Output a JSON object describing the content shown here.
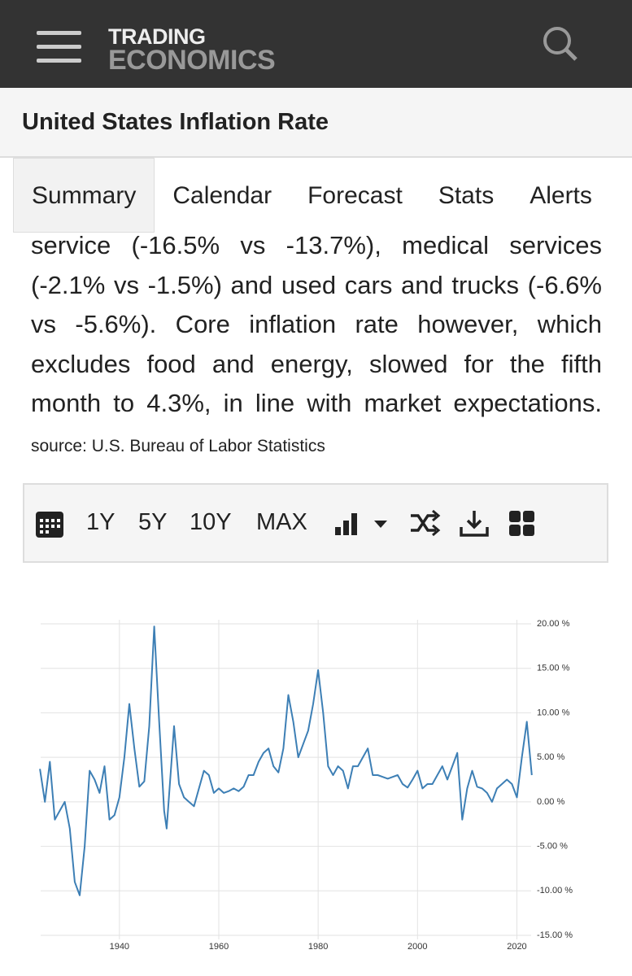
{
  "header": {
    "logo_top": "TRADING",
    "logo_bottom": "ECONOMICS"
  },
  "page_title": "United States Inflation Rate",
  "tabs": [
    "Summary",
    "Calendar",
    "Forecast",
    "Stats",
    "Alerts"
  ],
  "summary": {
    "text": "service (-16.5% vs -13.7%), medical services (-2.1% vs -1.5%) and used cars and trucks (-6.6% vs -5.6%). Core inflation rate however, which excludes food and energy, slowed for the fifth month to 4.3%, in line with market expectations.",
    "source": "source: U.S. Bureau of Labor Statistics"
  },
  "toolbar": [
    "1Y",
    "5Y",
    "10Y",
    "MAX"
  ],
  "chart_data": {
    "type": "line",
    "x": [
      1924,
      1925,
      1926,
      1927,
      1928,
      1929,
      1930,
      1931,
      1932,
      1933,
      1934,
      1935,
      1936,
      1937,
      1938,
      1939,
      1940,
      1941,
      1942,
      1943,
      1944,
      1945,
      1946,
      1947,
      1948,
      1949,
      1949.5,
      1951,
      1952,
      1953,
      1954,
      1955,
      1956,
      1957,
      1958,
      1959,
      1960,
      1961,
      1962,
      1963,
      1964,
      1965,
      1966,
      1967,
      1968,
      1969,
      1970,
      1971,
      1972,
      1973,
      1974,
      1975,
      1976,
      1977,
      1978,
      1979,
      1980,
      1981,
      1982,
      1983,
      1984,
      1985,
      1986,
      1987,
      1988,
      1989,
      1990,
      1991,
      1992,
      1993,
      1994,
      1995,
      1996,
      1997,
      1998,
      1999,
      2000,
      2001,
      2002,
      2003,
      2004,
      2005,
      2006,
      2007,
      2008,
      2009,
      2010,
      2011,
      2012,
      2013,
      2014,
      2015,
      2016,
      2017,
      2018,
      2019,
      2020,
      2021,
      2022,
      2023
    ],
    "series": [
      {
        "color": "#3d7fb5",
        "values": [
          3.7,
          0,
          4.5,
          -2,
          -1,
          0,
          -3,
          -9,
          -10.5,
          -5,
          3.5,
          2.5,
          1,
          4,
          -2,
          -1.5,
          0.5,
          5,
          11,
          6,
          1.7,
          2.3,
          8.5,
          19.7,
          9,
          -1,
          -3,
          8.5,
          2,
          0.5,
          0,
          -0.5,
          1.5,
          3.5,
          3,
          1,
          1.5,
          1,
          1.2,
          1.5,
          1.2,
          1.7,
          3,
          3,
          4.5,
          5.5,
          6,
          4,
          3.3,
          6,
          12,
          9,
          5,
          6.5,
          8,
          11,
          14.8,
          10,
          4,
          3,
          4,
          3.5,
          1.5,
          4,
          4,
          5,
          6,
          3,
          3,
          2.8,
          2.6,
          2.8,
          3,
          2,
          1.6,
          2.5,
          3.5,
          1.5,
          2,
          2,
          3,
          4,
          2.5,
          4,
          5.5,
          -2,
          1.5,
          3.5,
          1.7,
          1.5,
          1,
          0,
          1.5,
          2,
          2.5,
          2,
          0.5,
          5,
          9,
          3
        ]
      }
    ],
    "xlim": [
      1923,
      2025
    ],
    "xticks": [
      1940,
      1960,
      1980,
      2000,
      2020
    ],
    "ylim": [
      -15,
      20
    ],
    "yticks": [
      {
        "value": 20,
        "label": "20.00 %"
      },
      {
        "value": 15,
        "label": "15.00 %"
      },
      {
        "value": 10,
        "label": "10.00 %"
      },
      {
        "value": 5,
        "label": "5.00 %"
      },
      {
        "value": 0,
        "label": "0.00 %"
      },
      {
        "value": -5,
        "label": "-5.00 %"
      },
      {
        "value": -10,
        "label": "-10.00 %"
      },
      {
        "value": -15,
        "label": "-15.00 %"
      }
    ],
    "grid": true
  }
}
